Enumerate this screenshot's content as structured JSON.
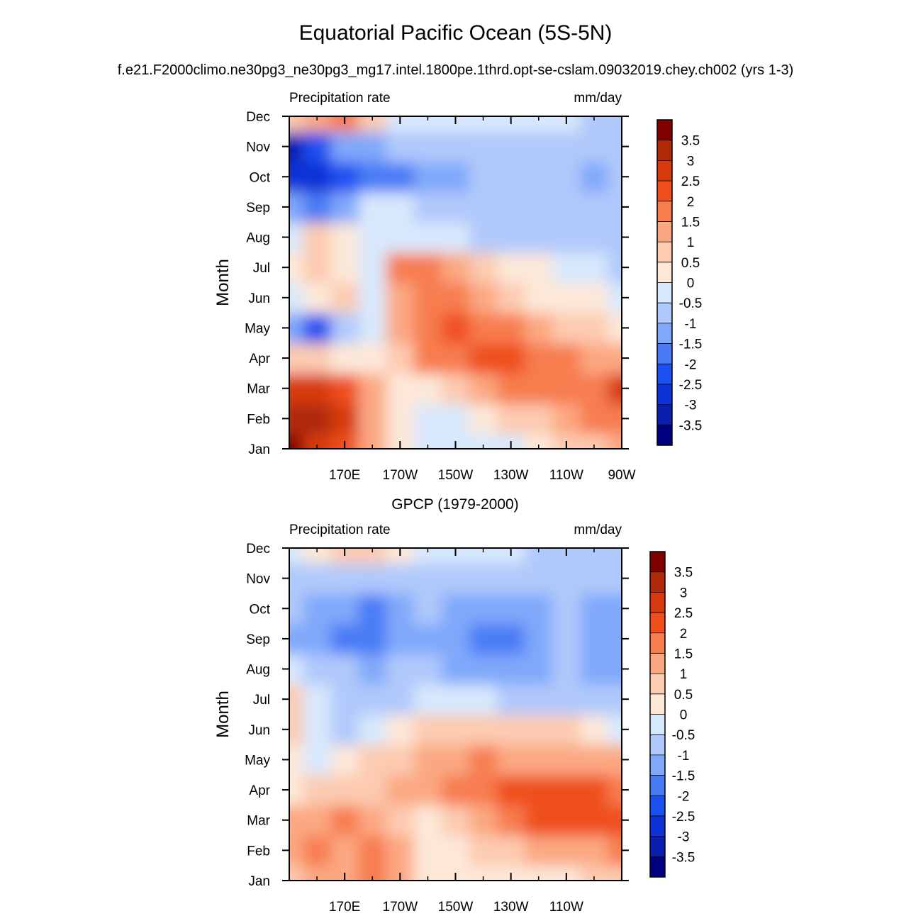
{
  "title": "Equatorial Pacific Ocean (5S-5N)",
  "subtitle": "f.e21.F2000climo.ne30pg3_ne30pg3_mg17.intel.1800pe.1thrd.opt-se-cslam.09032019.chey.ch002 (yrs 1-3)",
  "colorbar": {
    "labels": [
      "3.5",
      "3",
      "2.5",
      "2",
      "1.5",
      "1",
      "0.5",
      "0",
      "-0.5",
      "-1",
      "-1.5",
      "-2",
      "-2.5",
      "-3",
      "-3.5"
    ],
    "colors": [
      "#000080",
      "#0a1fb0",
      "#0d33d6",
      "#1a4ff0",
      "#4a7bf5",
      "#80a8fa",
      "#b0c9fb",
      "#d8e8fd",
      "#fde8d8",
      "#fccbb0",
      "#fba882",
      "#f77d4f",
      "#ef4f1a",
      "#d63a0d",
      "#b02a0a",
      "#800000"
    ]
  },
  "chart_data": [
    {
      "type": "heatmap",
      "title": "",
      "left_label": "Precipitation rate",
      "right_label": "mm/day",
      "ylabel": "Month",
      "xlabel": "",
      "x_ticks": [
        "170E",
        "170W",
        "150W",
        "130W",
        "110W",
        "90W"
      ],
      "y_ticks": [
        "Jan",
        "Feb",
        "Mar",
        "Apr",
        "May",
        "Jun",
        "Jul",
        "Aug",
        "Sep",
        "Oct",
        "Nov",
        "Dec"
      ],
      "xlim": [
        150,
        270
      ],
      "levels": [
        -3.5,
        -3,
        -2.5,
        -2,
        -1.5,
        -1,
        -0.5,
        0,
        0.5,
        1,
        1.5,
        2,
        2.5,
        3,
        3.5
      ],
      "lon": [
        150,
        160,
        170,
        180,
        190,
        200,
        210,
        220,
        230,
        240,
        250,
        260,
        270
      ],
      "values": [
        [
          3.8,
          2.8,
          2.0,
          1.0,
          0.3,
          -0.3,
          -0.5,
          -0.3,
          -0.2,
          0.2,
          0.5,
          0.8,
          1.2
        ],
        [
          3.0,
          3.2,
          2.5,
          1.2,
          0.3,
          -0.3,
          -0.3,
          0.2,
          0.5,
          0.8,
          1.2,
          1.5,
          1.8
        ],
        [
          2.5,
          2.8,
          2.0,
          1.0,
          0.3,
          0.3,
          0.8,
          1.2,
          1.5,
          1.5,
          1.5,
          1.8,
          2.5
        ],
        [
          0.8,
          0.5,
          0.3,
          0.2,
          0.5,
          1.5,
          1.8,
          2.2,
          2.0,
          1.8,
          1.5,
          1.3,
          1.2
        ],
        [
          -1.5,
          -2.5,
          -1.0,
          -0.3,
          1.0,
          1.8,
          2.2,
          1.8,
          1.5,
          1.2,
          0.8,
          0.5,
          0.3
        ],
        [
          -0.5,
          0.3,
          0.8,
          -0.3,
          1.2,
          1.5,
          1.5,
          1.0,
          0.7,
          0.4,
          0.2,
          0.0,
          -0.2
        ],
        [
          0.2,
          0.5,
          0.3,
          -0.3,
          1.5,
          1.6,
          1.0,
          0.6,
          0.3,
          0.0,
          -0.3,
          -0.5,
          -0.6
        ],
        [
          -0.3,
          0.5,
          0.2,
          -0.2,
          -0.3,
          -0.4,
          -0.5,
          -0.7,
          -0.8,
          -0.8,
          -0.8,
          -0.8,
          -0.8
        ],
        [
          -1.2,
          -1.6,
          -1.3,
          -0.3,
          -0.4,
          -0.6,
          -0.9,
          -1.0,
          -1.0,
          -0.9,
          -0.9,
          -0.9,
          -1.0
        ],
        [
          -2.8,
          -3.0,
          -2.2,
          -1.6,
          -1.8,
          -1.3,
          -1.2,
          -1.0,
          -0.9,
          -0.9,
          -0.9,
          -1.2,
          -1.0
        ],
        [
          -3.2,
          -2.5,
          -1.5,
          -1.2,
          -1.0,
          -0.8,
          -0.7,
          -0.7,
          -0.7,
          -0.6,
          -0.6,
          -0.6,
          -0.6
        ],
        [
          0.8,
          1.2,
          1.5,
          0.8,
          -0.3,
          -0.4,
          -0.5,
          -0.5,
          -0.5,
          -0.5,
          -0.5,
          -0.6,
          -0.6
        ]
      ]
    },
    {
      "type": "heatmap",
      "title": "GPCP (1979-2000)",
      "left_label": "Precipitation rate",
      "right_label": "mm/day",
      "ylabel": "Month",
      "xlabel": "",
      "x_ticks": [
        "170E",
        "170W",
        "150W",
        "130W",
        "110W"
      ],
      "y_ticks": [
        "Jan",
        "Feb",
        "Mar",
        "Apr",
        "May",
        "Jun",
        "Jul",
        "Aug",
        "Sep",
        "Oct",
        "Nov",
        "Dec"
      ],
      "xlim": [
        150,
        270
      ],
      "levels": [
        -3.5,
        -3,
        -2.5,
        -2,
        -1.5,
        -1,
        -0.5,
        0,
        0.5,
        1,
        1.5,
        2,
        2.5,
        3,
        3.5
      ],
      "lon": [
        150,
        160,
        170,
        180,
        190,
        200,
        210,
        220,
        230,
        240,
        250,
        260,
        270
      ],
      "values": [
        [
          0.8,
          1.0,
          1.2,
          1.5,
          1.0,
          0.2,
          0.2,
          0.3,
          0.3,
          0.3,
          0.4,
          0.6,
          0.8
        ],
        [
          1.2,
          1.5,
          1.2,
          1.6,
          1.0,
          0.3,
          0.3,
          0.5,
          0.8,
          1.0,
          1.2,
          1.2,
          1.5
        ],
        [
          1.0,
          1.3,
          1.5,
          1.3,
          0.8,
          0.3,
          0.8,
          1.2,
          1.8,
          2.0,
          2.0,
          2.0,
          2.0
        ],
        [
          0.3,
          0.5,
          0.8,
          0.8,
          1.0,
          1.2,
          1.5,
          1.8,
          2.0,
          2.2,
          2.0,
          2.2,
          1.8
        ],
        [
          0.2,
          -0.4,
          0.3,
          0.6,
          0.8,
          1.0,
          1.2,
          1.5,
          1.4,
          1.2,
          1.2,
          1.2,
          1.0
        ],
        [
          0.6,
          -0.4,
          -0.6,
          -0.4,
          0.2,
          0.5,
          0.7,
          0.8,
          0.8,
          0.7,
          0.5,
          0.2,
          -0.2
        ],
        [
          0.6,
          -0.5,
          -0.7,
          -0.8,
          -0.6,
          -0.4,
          -0.4,
          -0.5,
          -0.6,
          -0.6,
          -0.8,
          -0.9,
          -1.0
        ],
        [
          -0.4,
          -0.8,
          -1.0,
          -1.1,
          -1.0,
          -1.0,
          -1.1,
          -1.3,
          -1.2,
          -1.2,
          -1.0,
          -1.3,
          -1.2
        ],
        [
          -1.2,
          -1.5,
          -1.9,
          -1.9,
          -1.5,
          -1.3,
          -1.4,
          -1.6,
          -1.6,
          -1.5,
          -1.0,
          -1.3,
          -1.2
        ],
        [
          -1.0,
          -1.3,
          -1.5,
          -2.0,
          -1.4,
          -1.0,
          -1.3,
          -1.5,
          -1.4,
          -1.2,
          -1.0,
          -1.2,
          -1.2
        ],
        [
          -0.7,
          -0.9,
          -0.9,
          -0.8,
          -0.7,
          -0.7,
          -0.6,
          -0.6,
          -0.6,
          -0.7,
          -0.8,
          -0.8,
          -0.8
        ],
        [
          -0.2,
          0.3,
          0.7,
          0.8,
          0.3,
          -0.3,
          -0.4,
          -0.4,
          -0.5,
          -0.6,
          -0.6,
          -0.6,
          -0.7
        ]
      ]
    }
  ]
}
